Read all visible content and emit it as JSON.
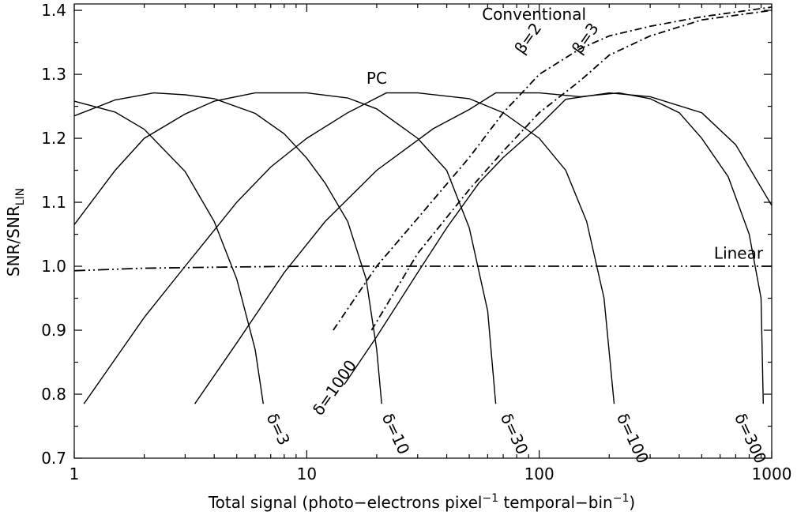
{
  "chart_data": {
    "type": "line",
    "title": "",
    "xlabel": {
      "prefix": "Total signal  (photo−electrons pixel",
      "sup1": "−1",
      "mid": " temporal−bin",
      "sup2": "−1",
      "suffix": ")"
    },
    "ylabel": {
      "main": "SNR/SNR",
      "sub": "LIN"
    },
    "x_scale": "log",
    "xlim": [
      1,
      1000
    ],
    "ylim": [
      0.7,
      1.41
    ],
    "x_ticks": [
      {
        "value": 1,
        "label": "1"
      },
      {
        "value": 10,
        "label": "10"
      },
      {
        "value": 100,
        "label": "100"
      },
      {
        "value": 1000,
        "label": "1000"
      }
    ],
    "y_ticks": [
      {
        "value": 0.7,
        "label": "0.7"
      },
      {
        "value": 0.8,
        "label": "0.8"
      },
      {
        "value": 0.9,
        "label": "0.9"
      },
      {
        "value": 1.0,
        "label": "1.0"
      },
      {
        "value": 1.1,
        "label": "1.1"
      },
      {
        "value": 1.2,
        "label": "1.2"
      },
      {
        "value": 1.3,
        "label": "1.3"
      },
      {
        "value": 1.4,
        "label": "1.4"
      }
    ],
    "series": [
      {
        "group": "PC",
        "style": "solid",
        "label": "δ=3",
        "points": [
          [
            1,
            1.258
          ],
          [
            1.5,
            1.241
          ],
          [
            2,
            1.214
          ],
          [
            3,
            1.148
          ],
          [
            4,
            1.07
          ],
          [
            5,
            0.98
          ],
          [
            6,
            0.87
          ],
          [
            6.5,
            0.785
          ]
        ]
      },
      {
        "group": "PC",
        "style": "solid",
        "label": "δ=10",
        "points": [
          [
            1,
            1.235
          ],
          [
            1.5,
            1.26
          ],
          [
            2.2,
            1.271
          ],
          [
            3,
            1.268
          ],
          [
            4,
            1.262
          ],
          [
            6,
            1.239
          ],
          [
            8,
            1.207
          ],
          [
            10,
            1.169
          ],
          [
            12,
            1.13
          ],
          [
            15,
            1.07
          ],
          [
            18,
            0.98
          ],
          [
            20,
            0.87
          ],
          [
            21,
            0.785
          ]
        ]
      },
      {
        "group": "PC",
        "style": "solid",
        "label": "δ=30",
        "points": [
          [
            1,
            1.065
          ],
          [
            1.5,
            1.15
          ],
          [
            2,
            1.2
          ],
          [
            3,
            1.238
          ],
          [
            4,
            1.258
          ],
          [
            6,
            1.271
          ],
          [
            10,
            1.271
          ],
          [
            15,
            1.263
          ],
          [
            20,
            1.246
          ],
          [
            30,
            1.2
          ],
          [
            40,
            1.15
          ],
          [
            50,
            1.06
          ],
          [
            60,
            0.93
          ],
          [
            65,
            0.785
          ]
        ]
      },
      {
        "group": "PC",
        "style": "solid",
        "label": "δ=100",
        "points": [
          [
            1.1,
            0.785
          ],
          [
            2,
            0.92
          ],
          [
            3,
            1.0
          ],
          [
            5,
            1.1
          ],
          [
            7,
            1.155
          ],
          [
            10,
            1.2
          ],
          [
            15,
            1.24
          ],
          [
            22,
            1.271
          ],
          [
            30,
            1.271
          ],
          [
            50,
            1.262
          ],
          [
            70,
            1.24
          ],
          [
            100,
            1.2
          ],
          [
            130,
            1.15
          ],
          [
            160,
            1.07
          ],
          [
            190,
            0.95
          ],
          [
            210,
            0.785
          ]
        ]
      },
      {
        "group": "PC",
        "style": "solid",
        "label": "δ=300",
        "points": [
          [
            3.3,
            0.785
          ],
          [
            5,
            0.88
          ],
          [
            8,
            0.99
          ],
          [
            12,
            1.07
          ],
          [
            20,
            1.15
          ],
          [
            35,
            1.215
          ],
          [
            50,
            1.245
          ],
          [
            65,
            1.271
          ],
          [
            100,
            1.271
          ],
          [
            150,
            1.265
          ],
          [
            220,
            1.271
          ],
          [
            300,
            1.262
          ],
          [
            400,
            1.24
          ],
          [
            500,
            1.2
          ],
          [
            650,
            1.14
          ],
          [
            800,
            1.05
          ],
          [
            900,
            0.95
          ],
          [
            920,
            0.785
          ]
        ]
      },
      {
        "group": "PC",
        "style": "solid",
        "label": "δ=1000",
        "points": [
          [
            14.5,
            0.815
          ],
          [
            20,
            0.89
          ],
          [
            30,
            0.99
          ],
          [
            40,
            1.06
          ],
          [
            55,
            1.13
          ],
          [
            70,
            1.17
          ],
          [
            100,
            1.22
          ],
          [
            130,
            1.261
          ],
          [
            200,
            1.271
          ],
          [
            300,
            1.265
          ],
          [
            500,
            1.24
          ],
          [
            700,
            1.19
          ],
          [
            1000,
            1.095
          ]
        ]
      },
      {
        "group": "Conventional",
        "style": "dashdot",
        "label": "β=2",
        "points": [
          [
            13,
            0.9
          ],
          [
            20,
            1.0
          ],
          [
            30,
            1.075
          ],
          [
            50,
            1.17
          ],
          [
            70,
            1.24
          ],
          [
            100,
            1.3
          ],
          [
            150,
            1.34
          ],
          [
            200,
            1.36
          ],
          [
            300,
            1.375
          ],
          [
            500,
            1.39
          ],
          [
            1000,
            1.405
          ]
        ]
      },
      {
        "group": "Conventional",
        "style": "dashdot",
        "label": "β=3",
        "points": [
          [
            19,
            0.9
          ],
          [
            30,
            1.02
          ],
          [
            50,
            1.12
          ],
          [
            70,
            1.18
          ],
          [
            100,
            1.24
          ],
          [
            150,
            1.29
          ],
          [
            200,
            1.33
          ],
          [
            300,
            1.36
          ],
          [
            500,
            1.385
          ],
          [
            1000,
            1.4
          ]
        ]
      },
      {
        "group": "Linear",
        "style": "dashdotdot",
        "label": "Linear",
        "points": [
          [
            1,
            0.993
          ],
          [
            2,
            0.997
          ],
          [
            5,
            0.999
          ],
          [
            10,
            1.0
          ],
          [
            1000,
            1.0
          ]
        ]
      }
    ],
    "annotations": [
      {
        "text": "Conventional",
        "x": 95,
        "y": 1.385,
        "rotate": 0
      },
      {
        "text": "PC",
        "x": 20,
        "y": 1.285,
        "rotate": 0
      },
      {
        "text": "Linear",
        "x": 720,
        "y": 1.012,
        "rotate": 0
      },
      {
        "text": "β=2",
        "x": 85,
        "y": 1.33,
        "rotate": -55
      },
      {
        "text": "β=3",
        "x": 150,
        "y": 1.33,
        "rotate": -55
      },
      {
        "text": "δ=3",
        "x": 6.7,
        "y": 0.765,
        "rotate": 65
      },
      {
        "text": "δ=10",
        "x": 21,
        "y": 0.765,
        "rotate": 65
      },
      {
        "text": "δ=30",
        "x": 68,
        "y": 0.765,
        "rotate": 65
      },
      {
        "text": "δ=100",
        "x": 215,
        "y": 0.765,
        "rotate": 65
      },
      {
        "text": "δ=300",
        "x": 690,
        "y": 0.765,
        "rotate": 65
      },
      {
        "text": "δ=1000",
        "x": 11.5,
        "y": 0.765,
        "rotate": -55
      }
    ],
    "legend": "none",
    "grid": false,
    "colors": {
      "line": "#000000",
      "background": "#ffffff"
    }
  }
}
